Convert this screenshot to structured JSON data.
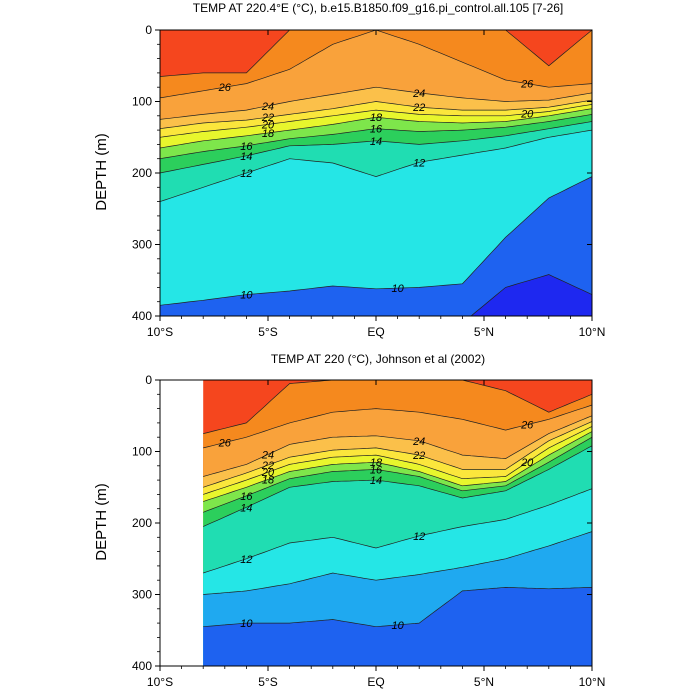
{
  "chart_data": [
    {
      "type": "heatmap",
      "subtype": "filled-contour depth section",
      "title": "TEMP AT 220.4°E (°C), b.e15.B1850.f09_g16.pi_control.all.105 [7-26]",
      "xlabel": "",
      "ylabel": "DEPTH (m)",
      "xlim": [
        -10,
        10
      ],
      "ylim": [
        400,
        0
      ],
      "x_ticks": [
        -10,
        -5,
        0,
        5,
        10
      ],
      "x_tick_labels": [
        "10°S",
        "5°S",
        "EQ",
        "5°N",
        "10°N"
      ],
      "y_ticks": [
        0,
        100,
        200,
        300,
        400
      ],
      "y_tick_labels": [
        "0",
        "100",
        "200",
        "300",
        "400"
      ],
      "data_extent_x": [
        -10,
        10
      ],
      "contour_interval_degC": 1,
      "x": [
        -10,
        -8,
        -6,
        -4,
        -2,
        0,
        2,
        4,
        6,
        8,
        10
      ],
      "isotherm_depths_m": {
        "28": [
          65,
          60,
          60,
          0,
          0,
          0,
          0,
          0,
          0,
          50,
          0
        ],
        "26": [
          95,
          85,
          75,
          55,
          20,
          0,
          20,
          45,
          70,
          80,
          75
        ],
        "24": [
          125,
          118,
          112,
          100,
          90,
          80,
          88,
          95,
          100,
          98,
          88
        ],
        "22": [
          138,
          130,
          126,
          118,
          110,
          100,
          108,
          112,
          112,
          108,
          98
        ],
        "20": [
          150,
          142,
          136,
          128,
          120,
          112,
          118,
          120,
          120,
          114,
          104
        ],
        "18": [
          165,
          155,
          148,
          140,
          132,
          122,
          128,
          130,
          128,
          120,
          110
        ],
        "16": [
          180,
          170,
          162,
          152,
          146,
          138,
          142,
          140,
          136,
          128,
          118
        ],
        "14": [
          200,
          188,
          176,
          162,
          160,
          155,
          160,
          155,
          148,
          138,
          128
        ],
        "12": [
          240,
          220,
          200,
          180,
          186,
          205,
          185,
          175,
          165,
          150,
          140
        ],
        "10": [
          385,
          378,
          370,
          365,
          358,
          362,
          360,
          355,
          290,
          235,
          205
        ],
        "9": [
          410,
          410,
          410,
          410,
          410,
          410,
          410,
          410,
          360,
          342,
          370
        ]
      },
      "contour_labels": [
        "26",
        "24",
        "22",
        "20",
        "18",
        "16",
        "14",
        "12",
        "10"
      ],
      "colors": {
        "28": "#f5461e",
        "26": "#f5891e",
        "24": "#f9a23b",
        "22": "#fbc04a",
        "20": "#fbe63c",
        "18": "#e8f62d",
        "16": "#7ee64b",
        "14": "#2ccf5c",
        "12": "#20ddb2",
        "11": "#25e6e6",
        "10": "#1fa9f0",
        "9": "#1e62f0",
        "8": "#1e28f0"
      }
    },
    {
      "type": "heatmap",
      "subtype": "filled-contour depth section",
      "title": "TEMP AT 220 (°C), Johnson et al (2002)",
      "xlabel": "",
      "ylabel": "DEPTH (m)",
      "xlim": [
        -10,
        10
      ],
      "ylim": [
        400,
        0
      ],
      "x_ticks": [
        -10,
        -5,
        0,
        5,
        10
      ],
      "x_tick_labels": [
        "10°S",
        "5°S",
        "EQ",
        "5°N",
        "10°N"
      ],
      "y_ticks": [
        0,
        100,
        200,
        300,
        400
      ],
      "y_tick_labels": [
        "0",
        "100",
        "200",
        "300",
        "400"
      ],
      "data_extent_x": [
        -8,
        10
      ],
      "contour_interval_degC": 1,
      "x": [
        -8,
        -6,
        -4,
        -2,
        0,
        2,
        4,
        6,
        8,
        10
      ],
      "isotherm_depths_m": {
        "28": [
          75,
          60,
          5,
          0,
          0,
          0,
          0,
          15,
          45,
          20
        ],
        "26": [
          95,
          80,
          60,
          45,
          40,
          45,
          55,
          70,
          55,
          35
        ],
        "24": [
          135,
          118,
          90,
          80,
          78,
          85,
          105,
          110,
          75,
          50
        ],
        "22": [
          150,
          130,
          108,
          98,
          95,
          105,
          125,
          125,
          85,
          58
        ],
        "20": [
          160,
          140,
          118,
          108,
          105,
          118,
          138,
          135,
          95,
          65
        ],
        "18": [
          170,
          150,
          128,
          118,
          115,
          128,
          148,
          142,
          105,
          72
        ],
        "16": [
          185,
          162,
          138,
          128,
          125,
          135,
          155,
          148,
          115,
          80
        ],
        "14": [
          205,
          178,
          150,
          142,
          140,
          148,
          165,
          155,
          125,
          92
        ],
        "12": [
          270,
          250,
          228,
          220,
          235,
          218,
          205,
          195,
          175,
          152
        ],
        "11": [
          300,
          295,
          285,
          270,
          280,
          272,
          262,
          250,
          232,
          212
        ],
        "10": [
          345,
          340,
          340,
          335,
          345,
          340,
          295,
          290,
          292,
          290
        ],
        "9": [
          410,
          410,
          410,
          410,
          410,
          410,
          410,
          410,
          410,
          410
        ]
      },
      "contour_labels": [
        "26",
        "24",
        "22",
        "20",
        "18",
        "16",
        "14",
        "12",
        "10"
      ],
      "colors": {
        "28": "#f5461e",
        "26": "#f5891e",
        "24": "#f9a23b",
        "22": "#fbc04a",
        "20": "#fbe63c",
        "18": "#e8f62d",
        "16": "#7ee64b",
        "14": "#2ccf5c",
        "12": "#20ddb2",
        "11": "#25e6e6",
        "10": "#1fa9f0",
        "9": "#1e62f0",
        "8": "#1e28f0"
      }
    }
  ]
}
